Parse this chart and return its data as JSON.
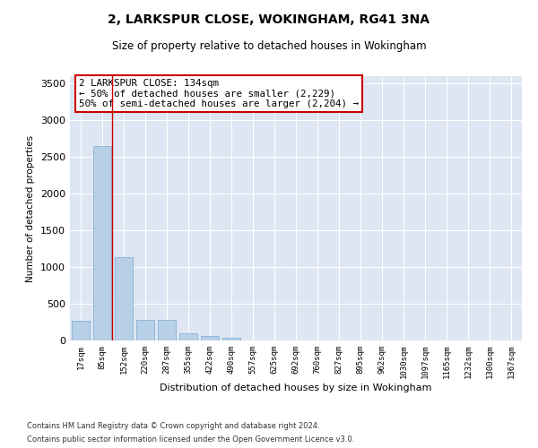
{
  "title": "2, LARKSPUR CLOSE, WOKINGHAM, RG41 3NA",
  "subtitle": "Size of property relative to detached houses in Wokingham",
  "xlabel": "Distribution of detached houses by size in Wokingham",
  "ylabel": "Number of detached properties",
  "bar_color": "#b8cfe8",
  "bar_edge_color": "#7aaad0",
  "background_color": "#dde6f2",
  "grid_color": "#ffffff",
  "categories": [
    "17sqm",
    "85sqm",
    "152sqm",
    "220sqm",
    "287sqm",
    "355sqm",
    "422sqm",
    "490sqm",
    "557sqm",
    "625sqm",
    "692sqm",
    "760sqm",
    "827sqm",
    "895sqm",
    "962sqm",
    "1030sqm",
    "1097sqm",
    "1165sqm",
    "1232sqm",
    "1300sqm",
    "1367sqm"
  ],
  "values": [
    270,
    2650,
    1140,
    285,
    280,
    95,
    60,
    35,
    0,
    0,
    0,
    0,
    0,
    0,
    0,
    0,
    0,
    0,
    0,
    0,
    0
  ],
  "ylim": [
    0,
    3600
  ],
  "yticks": [
    0,
    500,
    1000,
    1500,
    2000,
    2500,
    3000,
    3500
  ],
  "red_line_x": 1.45,
  "annotation_text": "2 LARKSPUR CLOSE: 134sqm\n← 50% of detached houses are smaller (2,229)\n50% of semi-detached houses are larger (2,204) →",
  "footnote1": "Contains HM Land Registry data © Crown copyright and database right 2024.",
  "footnote2": "Contains public sector information licensed under the Open Government Licence v3.0."
}
